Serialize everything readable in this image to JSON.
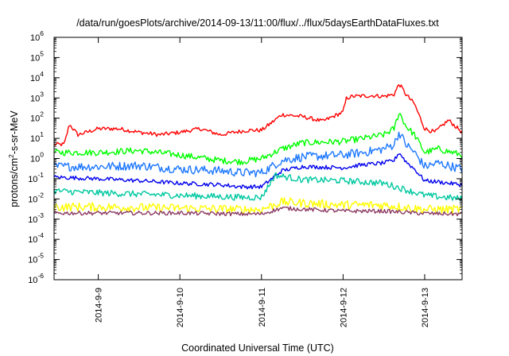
{
  "chart_data": {
    "type": "line",
    "title": "/data/run/goesPlots/archive/2014-09-13/11:00/flux/../flux/5daysEarthDataFluxes.txt",
    "xlabel": "Coordinated Universal Time (UTC)",
    "ylabel": {
      "base": "protons/cm",
      "sup": "2",
      "rest": "-s-sr-MeV"
    },
    "x_scale": "time",
    "y_scale": "log",
    "xlim": [
      "2014-09-08 11:00",
      "2014-09-13 11:00"
    ],
    "ylim": [
      1e-06,
      1000000.0
    ],
    "x_ticks": [
      {
        "value": "2014-09-09 00:00",
        "label": "2014-9-9"
      },
      {
        "value": "2014-09-10 00:00",
        "label": "2014-9-10"
      },
      {
        "value": "2014-09-11 00:00",
        "label": "2014-9-11"
      },
      {
        "value": "2014-09-12 00:00",
        "label": "2014-9-12"
      },
      {
        "value": "2014-09-13 00:00",
        "label": "2014-9-13"
      }
    ],
    "y_ticks": [
      {
        "base": "10",
        "exp": "-6"
      },
      {
        "base": "10",
        "exp": "-5"
      },
      {
        "base": "10",
        "exp": "-4"
      },
      {
        "base": "10",
        "exp": "-3"
      },
      {
        "base": "10",
        "exp": "-2"
      },
      {
        "base": "10",
        "exp": "-1"
      },
      {
        "base": "10",
        "exp": "0"
      },
      {
        "base": "10",
        "exp": "1"
      },
      {
        "base": "10",
        "exp": "2"
      },
      {
        "base": "10",
        "exp": "3"
      },
      {
        "base": "10",
        "exp": "4"
      },
      {
        "base": "10",
        "exp": "5"
      },
      {
        "base": "10",
        "exp": "6"
      }
    ],
    "grid": false,
    "legend": "none",
    "series": [
      {
        "color": "#ff0000",
        "x": [
          "2014-09-08 11:00",
          "2014-09-08 14:00",
          "2014-09-08 15:30",
          "2014-09-08 18:00",
          "2014-09-09 00:00",
          "2014-09-09 06:00",
          "2014-09-09 12:00",
          "2014-09-09 18:00",
          "2014-09-10 00:00",
          "2014-09-10 06:00",
          "2014-09-10 12:00",
          "2014-09-10 16:00",
          "2014-09-10 20:00",
          "2014-09-11 00:00",
          "2014-09-11 03:00",
          "2014-09-11 06:00",
          "2014-09-11 12:00",
          "2014-09-11 18:00",
          "2014-09-12 00:00",
          "2014-09-12 01:00",
          "2014-09-12 03:00",
          "2014-09-12 09:00",
          "2014-09-12 12:00",
          "2014-09-12 15:00",
          "2014-09-12 16:30",
          "2014-09-12 18:30",
          "2014-09-12 21:00",
          "2014-09-13 00:00",
          "2014-09-13 03:00",
          "2014-09-13 07:00",
          "2014-09-13 11:00"
        ],
        "values": [
          5,
          5,
          50,
          15,
          30,
          30,
          20,
          15,
          20,
          30,
          15,
          20,
          25,
          25,
          60,
          150,
          120,
          70,
          200,
          1000,
          1200,
          1300,
          1200,
          1500,
          5000,
          1500,
          500,
          30,
          20,
          80,
          20
        ]
      },
      {
        "color": "#00ff00",
        "x": [
          "2014-09-08 11:00",
          "2014-09-09 00:00",
          "2014-09-09 12:00",
          "2014-09-10 00:00",
          "2014-09-10 12:00",
          "2014-09-10 18:00",
          "2014-09-11 00:00",
          "2014-09-11 06:00",
          "2014-09-11 12:00",
          "2014-09-12 00:00",
          "2014-09-12 06:00",
          "2014-09-12 12:00",
          "2014-09-12 15:00",
          "2014-09-12 16:30",
          "2014-09-12 18:30",
          "2014-09-12 21:00",
          "2014-09-13 00:00",
          "2014-09-13 04:00",
          "2014-09-13 11:00"
        ],
        "values": [
          2,
          2,
          2.5,
          1.5,
          0.8,
          0.7,
          1,
          3,
          6,
          7,
          10,
          15,
          30,
          200,
          40,
          15,
          2,
          3,
          1.5
        ]
      },
      {
        "color": "#1e78ff",
        "x": [
          "2014-09-08 11:00",
          "2014-09-09 00:00",
          "2014-09-09 12:00",
          "2014-09-10 00:00",
          "2014-09-10 12:00",
          "2014-09-10 18:00",
          "2014-09-11 00:00",
          "2014-09-11 06:00",
          "2014-09-11 12:00",
          "2014-09-12 00:00",
          "2014-09-12 06:00",
          "2014-09-12 12:00",
          "2014-09-12 15:00",
          "2014-09-12 16:30",
          "2014-09-12 18:30",
          "2014-09-12 21:00",
          "2014-09-13 00:00",
          "2014-09-13 04:00",
          "2014-09-13 11:00"
        ],
        "values": [
          0.4,
          0.4,
          0.45,
          0.3,
          0.25,
          0.2,
          0.2,
          0.8,
          1.2,
          1.5,
          2,
          3,
          5,
          20,
          5,
          2,
          0.4,
          0.6,
          0.3
        ]
      },
      {
        "color": "#0000ee",
        "x": [
          "2014-09-08 11:00",
          "2014-09-09 00:00",
          "2014-09-09 12:00",
          "2014-09-10 00:00",
          "2014-09-10 12:00",
          "2014-09-10 18:00",
          "2014-09-11 00:00",
          "2014-09-11 06:00",
          "2014-09-11 12:00",
          "2014-09-12 00:00",
          "2014-09-12 06:00",
          "2014-09-12 12:00",
          "2014-09-12 15:00",
          "2014-09-12 16:30",
          "2014-09-12 18:30",
          "2014-09-12 21:00",
          "2014-09-13 00:00",
          "2014-09-13 04:00",
          "2014-09-13 11:00"
        ],
        "values": [
          0.12,
          0.1,
          0.08,
          0.06,
          0.05,
          0.04,
          0.04,
          0.25,
          0.4,
          0.35,
          0.5,
          0.6,
          0.8,
          2,
          0.7,
          0.3,
          0.08,
          0.07,
          0.05
        ]
      },
      {
        "color": "#00c8a0",
        "x": [
          "2014-09-08 11:00",
          "2014-09-09 00:00",
          "2014-09-10 00:00",
          "2014-09-10 18:00",
          "2014-09-11 00:00",
          "2014-09-11 04:00",
          "2014-09-11 12:00",
          "2014-09-12 00:00",
          "2014-09-12 12:00",
          "2014-09-13 00:00",
          "2014-09-13 11:00"
        ],
        "values": [
          0.025,
          0.02,
          0.015,
          0.012,
          0.012,
          0.15,
          0.09,
          0.08,
          0.06,
          0.015,
          0.01
        ]
      },
      {
        "color": "#ffff00",
        "x": [
          "2014-09-08 11:00",
          "2014-09-09 00:00",
          "2014-09-10 00:00",
          "2014-09-10 18:00",
          "2014-09-11 00:00",
          "2014-09-11 06:00",
          "2014-09-12 00:00",
          "2014-09-12 12:00",
          "2014-09-13 00:00",
          "2014-09-13 11:00"
        ],
        "values": [
          0.004,
          0.004,
          0.0035,
          0.003,
          0.003,
          0.007,
          0.005,
          0.005,
          0.003,
          0.003
        ]
      },
      {
        "color": "#8b3a62",
        "x": [
          "2014-09-08 11:00",
          "2014-09-09 00:00",
          "2014-09-10 00:00",
          "2014-09-10 18:00",
          "2014-09-11 00:00",
          "2014-09-11 06:00",
          "2014-09-12 00:00",
          "2014-09-12 12:00",
          "2014-09-13 00:00",
          "2014-09-13 11:00"
        ],
        "values": [
          0.002,
          0.002,
          0.002,
          0.0018,
          0.0018,
          0.0035,
          0.0025,
          0.0025,
          0.0019,
          0.0018
        ]
      }
    ]
  }
}
